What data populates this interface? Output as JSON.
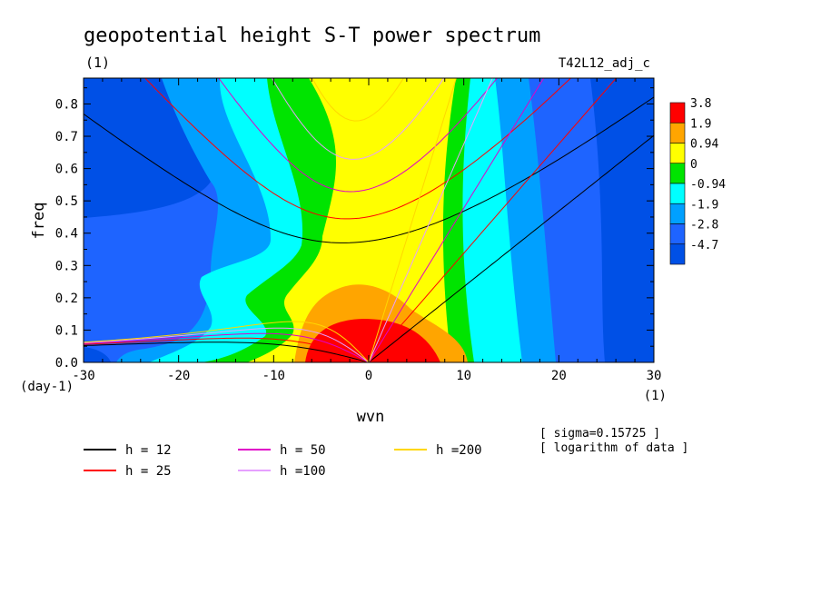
{
  "chart_data": {
    "type": "heatmap",
    "title": "geopotential height S-T power spectrum",
    "units_label": "(1)",
    "run_label": "T42L12_adj_c",
    "xlabel": "wvn",
    "ylabel": "freq",
    "x_units": "(1)",
    "y_units": "(day-1)",
    "xlim": [
      -30,
      30
    ],
    "ylim": [
      0.0,
      0.88
    ],
    "x_ticks": [
      -30,
      -20,
      -10,
      0,
      10,
      20,
      30
    ],
    "x_tick_labels": [
      "-30",
      "-20",
      "-10",
      "0",
      "10",
      "20",
      "30"
    ],
    "y_ticks": [
      0.0,
      0.1,
      0.2,
      0.3,
      0.4,
      0.5,
      0.6,
      0.7,
      0.8
    ],
    "y_tick_labels": [
      "0.0",
      "0.1",
      "0.2",
      "0.3",
      "0.4",
      "0.5",
      "0.6",
      "0.7",
      "0.8"
    ],
    "colorbar": {
      "levels": [
        "3.8",
        "1.9",
        "0.94",
        "0",
        "-0.94",
        "-1.9",
        "-2.8",
        "-4.7"
      ],
      "colors": [
        "#ff0000",
        "#ffa500",
        "#ffff00",
        "#00e400",
        "#00ffff",
        "#00a0ff",
        "#1e64ff",
        "#0050e6"
      ]
    },
    "notes": [
      "[ sigma=0.15725 ]",
      "[ logarithm of data ]"
    ],
    "dispersion_curves": [
      {
        "name": "h = 12",
        "h": 12,
        "color": "#000000"
      },
      {
        "name": "h = 25",
        "h": 25,
        "color": "#ff0000"
      },
      {
        "name": "h = 50",
        "h": 50,
        "color": "#e000c8"
      },
      {
        "name": "h =100",
        "h": 100,
        "color": "#e6a0ff"
      },
      {
        "name": "h =200",
        "h": 200,
        "color": "#ffd700"
      }
    ]
  }
}
